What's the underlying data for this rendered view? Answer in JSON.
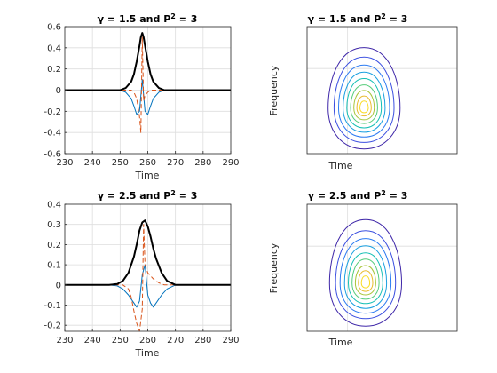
{
  "chart_data": [
    {
      "id": "p1",
      "type": "line",
      "title_prefix": "γ = 1.5 and P",
      "title_sup": "2",
      "title_suffix": " = 3",
      "xlabel": "Time",
      "ylabel": "",
      "xlim": [
        230,
        290
      ],
      "ylim": [
        -0.6,
        0.6
      ],
      "grid": true,
      "xticks": [
        230,
        240,
        250,
        260,
        270,
        280,
        290
      ],
      "yticks": [
        -0.6,
        -0.4,
        -0.2,
        0,
        0.2,
        0.4,
        0.6
      ],
      "ytick_labels": [
        "-0.6",
        "-0.4",
        "-0.2",
        "0",
        "0.2",
        "0.4",
        "0.6"
      ],
      "series": [
        {
          "color": "#0072BD",
          "style": "solid",
          "x": [
            230,
            250,
            252,
            254,
            255,
            256,
            257,
            258,
            259,
            260,
            261,
            262,
            264,
            266,
            290
          ],
          "y": [
            0,
            0,
            -0.02,
            -0.08,
            -0.15,
            -0.23,
            -0.2,
            0.1,
            -0.2,
            -0.23,
            -0.15,
            -0.08,
            -0.02,
            0,
            0
          ]
        },
        {
          "color": "#D95319",
          "style": "dashed",
          "x": [
            230,
            254,
            255,
            256,
            257,
            257.5,
            258,
            258.5,
            259,
            260,
            261,
            262,
            290
          ],
          "y": [
            0,
            0,
            -0.02,
            -0.08,
            -0.25,
            -0.4,
            0.5,
            -0.1,
            -0.05,
            -0.02,
            0,
            0,
            0
          ]
        },
        {
          "color": "#000000",
          "style": "solid",
          "width": 2,
          "x": [
            230,
            250,
            252,
            254,
            255,
            256,
            257,
            257.5,
            258,
            258.5,
            259,
            260,
            261,
            262,
            264,
            266,
            290
          ],
          "y": [
            0,
            0,
            0.02,
            0.08,
            0.15,
            0.27,
            0.42,
            0.5,
            0.54,
            0.5,
            0.42,
            0.27,
            0.15,
            0.08,
            0.02,
            0,
            0
          ]
        }
      ]
    },
    {
      "id": "p2",
      "type": "contour",
      "title_prefix": "γ = 1.5 and P",
      "title_sup": "2",
      "title_suffix": " = 3",
      "xlabel": "Time",
      "ylabel": "Frequency",
      "grid": true,
      "center": [
        0.38,
        0.36
      ],
      "levels": [
        {
          "color": "#3E26A8",
          "rx": 0.24,
          "ry": 0.38
        },
        {
          "color": "#3B4FE0",
          "rx": 0.2,
          "ry": 0.32
        },
        {
          "color": "#2C7BF2",
          "rx": 0.17,
          "ry": 0.27
        },
        {
          "color": "#1AA0E0",
          "rx": 0.14,
          "ry": 0.225
        },
        {
          "color": "#14BFB4",
          "rx": 0.115,
          "ry": 0.185
        },
        {
          "color": "#55CC7A",
          "rx": 0.09,
          "ry": 0.145
        },
        {
          "color": "#A7C53A",
          "rx": 0.068,
          "ry": 0.11
        },
        {
          "color": "#E8BA2C",
          "rx": 0.048,
          "ry": 0.075
        },
        {
          "color": "#F9DC25",
          "rx": 0.028,
          "ry": 0.044
        }
      ]
    },
    {
      "id": "p3",
      "type": "line",
      "title_prefix": "γ = 2.5 and P",
      "title_sup": "2",
      "title_suffix": " = 3",
      "xlabel": "Time",
      "ylabel": "",
      "xlim": [
        230,
        290
      ],
      "ylim": [
        -0.23,
        0.4
      ],
      "grid": true,
      "xticks": [
        230,
        240,
        250,
        260,
        270,
        280,
        290
      ],
      "yticks": [
        -0.2,
        -0.1,
        0,
        0.1,
        0.2,
        0.3,
        0.4
      ],
      "ytick_labels": [
        "-0.2",
        "-0.1",
        "0",
        "0.1",
        "0.2",
        "0.3",
        "0.4"
      ],
      "series": [
        {
          "color": "#0072BD",
          "style": "solid",
          "x": [
            230,
            246,
            249,
            251,
            253,
            255,
            256,
            257,
            258,
            259,
            260,
            261,
            262,
            263,
            265,
            267,
            270,
            290
          ],
          "y": [
            0,
            0,
            -0.005,
            -0.02,
            -0.05,
            -0.09,
            -0.11,
            -0.08,
            0.05,
            0.1,
            -0.05,
            -0.09,
            -0.11,
            -0.09,
            -0.05,
            -0.02,
            0,
            0
          ]
        },
        {
          "color": "#D95319",
          "style": "dashed",
          "x": [
            230,
            251,
            253,
            254,
            255,
            256,
            257,
            258,
            258.5,
            259,
            260,
            262,
            264,
            266,
            290
          ],
          "y": [
            0,
            0,
            -0.02,
            -0.06,
            -0.13,
            -0.19,
            -0.23,
            -0.12,
            0.3,
            0.1,
            0.06,
            0.03,
            0.01,
            0,
            0
          ]
        },
        {
          "color": "#000000",
          "style": "solid",
          "width": 2,
          "x": [
            230,
            246,
            249,
            251,
            253,
            255,
            256,
            257,
            258,
            259,
            260,
            261,
            262,
            263,
            265,
            267,
            270,
            290
          ],
          "y": [
            0,
            0,
            0.005,
            0.02,
            0.06,
            0.14,
            0.2,
            0.27,
            0.31,
            0.32,
            0.29,
            0.24,
            0.18,
            0.13,
            0.06,
            0.02,
            0,
            0
          ]
        }
      ]
    },
    {
      "id": "p4",
      "type": "contour",
      "title_prefix": "γ = 2.5 and P",
      "title_sup": "2",
      "title_suffix": " = 3",
      "xlabel": "Time",
      "ylabel": "Frequency",
      "grid": true,
      "center": [
        0.39,
        0.38
      ],
      "levels": [
        {
          "color": "#3E26A8",
          "rx": 0.24,
          "ry": 0.4
        },
        {
          "color": "#3B4FE0",
          "rx": 0.2,
          "ry": 0.33
        },
        {
          "color": "#2C7BF2",
          "rx": 0.17,
          "ry": 0.28
        },
        {
          "color": "#1AA0E0",
          "rx": 0.14,
          "ry": 0.235
        },
        {
          "color": "#14BFB4",
          "rx": 0.115,
          "ry": 0.19
        },
        {
          "color": "#55CC7A",
          "rx": 0.09,
          "ry": 0.15
        },
        {
          "color": "#A7C53A",
          "rx": 0.068,
          "ry": 0.11
        },
        {
          "color": "#E8BA2C",
          "rx": 0.048,
          "ry": 0.078
        },
        {
          "color": "#F9DC25",
          "rx": 0.028,
          "ry": 0.045
        }
      ]
    }
  ]
}
